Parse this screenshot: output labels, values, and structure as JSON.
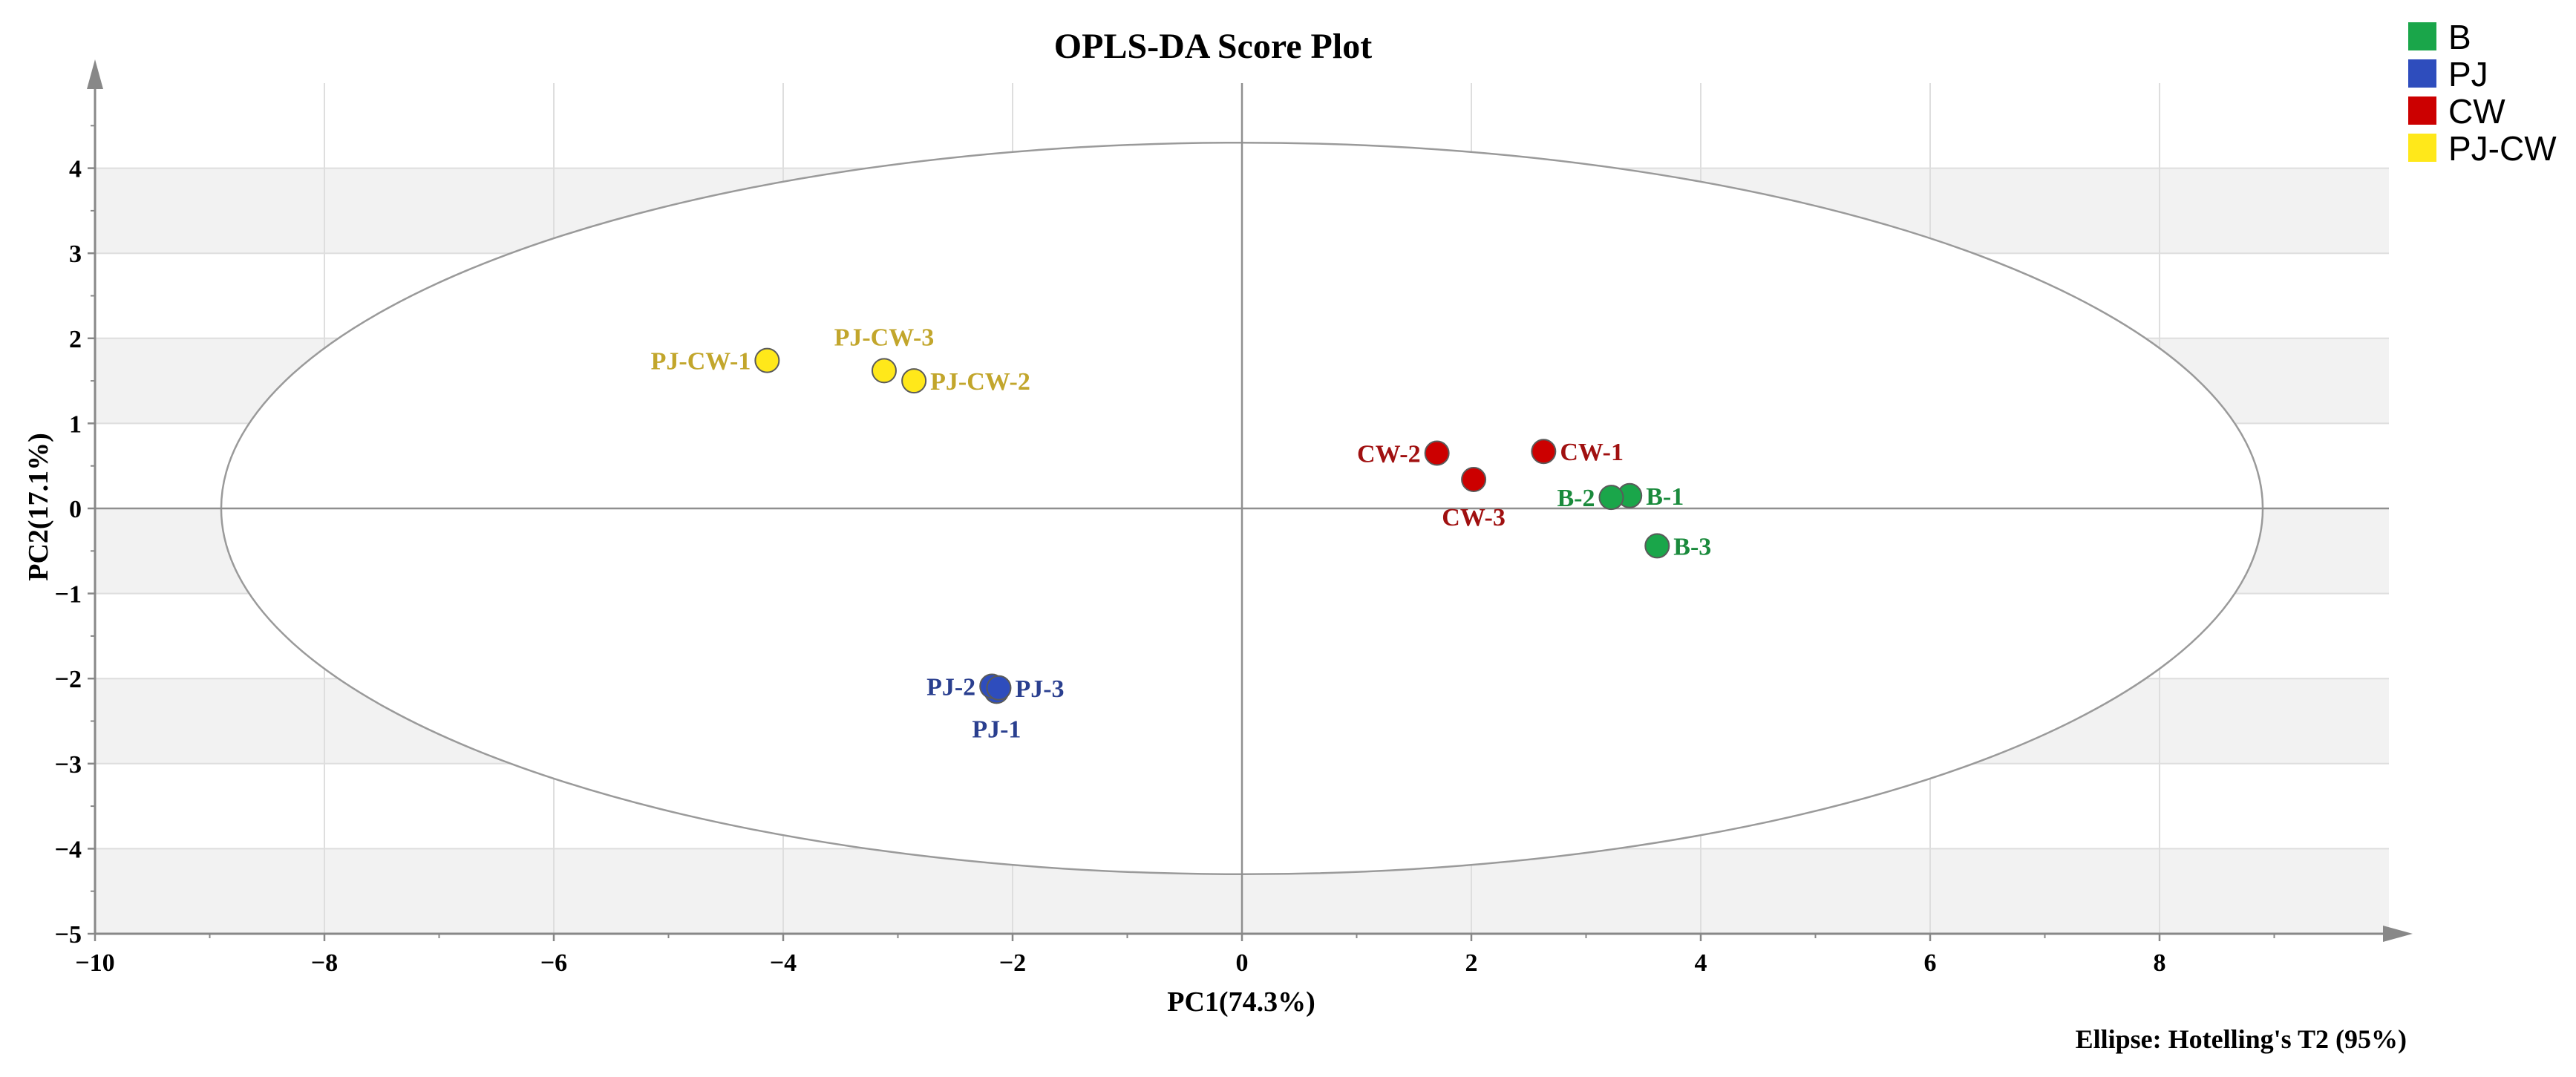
{
  "chart_data": {
    "type": "scatter",
    "title": "OPLS-DA Score Plot",
    "xlabel": "PC1(74.3%)",
    "ylabel": "PC2(17.1%)",
    "xlim": [
      -10,
      10
    ],
    "ylim": [
      -5,
      5
    ],
    "xticks": [
      -10,
      -8,
      -6,
      -4,
      -2,
      0,
      2,
      4,
      6,
      8
    ],
    "yticks": [
      -5,
      -4,
      -3,
      -2,
      -1,
      0,
      1,
      2,
      3,
      4
    ],
    "grid": true,
    "note": "Ellipse: Hotelling's T2 (95%)",
    "ellipse": {
      "center": [
        0,
        0
      ],
      "rx": 8.9,
      "ry": 4.3
    },
    "legend_position": "top-right outside",
    "groups": [
      {
        "name": "B",
        "color": "#1aa64a",
        "label_color": "#1a8a3c",
        "points": [
          {
            "label": "B-1",
            "x": 3.38,
            "y": 0.15,
            "label_side": "right"
          },
          {
            "label": "B-2",
            "x": 3.22,
            "y": 0.13,
            "label_side": "left"
          },
          {
            "label": "B-3",
            "x": 3.62,
            "y": -0.44,
            "label_side": "right"
          }
        ]
      },
      {
        "name": "PJ",
        "color": "#2e4dbd",
        "label_color": "#2a3f8f",
        "points": [
          {
            "label": "PJ-1",
            "x": -2.14,
            "y": -2.15,
            "label_side": "below"
          },
          {
            "label": "PJ-2",
            "x": -2.18,
            "y": -2.09,
            "label_side": "left"
          },
          {
            "label": "PJ-3",
            "x": -2.12,
            "y": -2.11,
            "label_side": "right"
          }
        ]
      },
      {
        "name": "CW",
        "color": "#cc0000",
        "label_color": "#a01010",
        "points": [
          {
            "label": "CW-1",
            "x": 2.63,
            "y": 0.67,
            "label_side": "right"
          },
          {
            "label": "CW-2",
            "x": 1.7,
            "y": 0.65,
            "label_side": "left"
          },
          {
            "label": "CW-3",
            "x": 2.02,
            "y": 0.34,
            "label_side": "below"
          }
        ]
      },
      {
        "name": "PJ-CW",
        "color": "#ffe81a",
        "label_color": "#c2a62c",
        "points": [
          {
            "label": "PJ-CW-1",
            "x": -4.14,
            "y": 1.74,
            "label_side": "left"
          },
          {
            "label": "PJ-CW-2",
            "x": -2.86,
            "y": 1.5,
            "label_side": "right"
          },
          {
            "label": "PJ-CW-3",
            "x": -3.12,
            "y": 1.62,
            "label_side": "above"
          }
        ]
      }
    ]
  }
}
